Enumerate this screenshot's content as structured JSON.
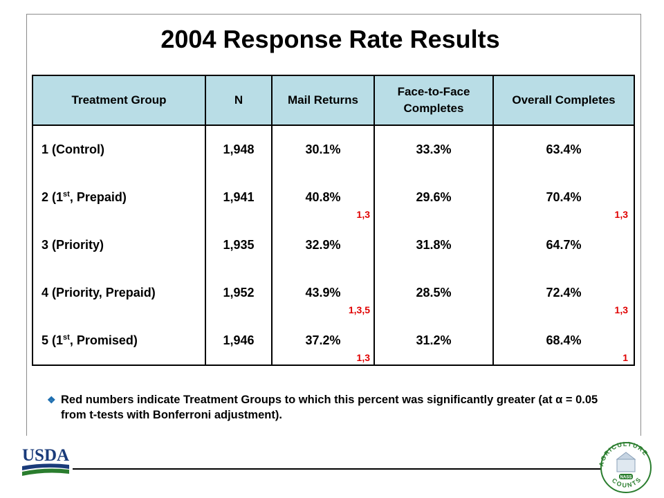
{
  "title": "2004 Response Rate Results",
  "table": {
    "headers": {
      "group": "Treatment Group",
      "n": "N",
      "mail": "Mail Returns",
      "f2f": "Face-to-Face Completes",
      "overall": "Overall Completes"
    },
    "rows": [
      {
        "group_pre": "1 (Control)",
        "group_sup": "",
        "group_post": "",
        "n": "1,948",
        "mail": "30.1%",
        "mail_sig": "",
        "f2f": "33.3%",
        "overall": "63.4%",
        "overall_sig": ""
      },
      {
        "group_pre": "2 (1",
        "group_sup": "st",
        "group_post": ", Prepaid)",
        "n": "1,941",
        "mail": "40.8%",
        "mail_sig": "1,3",
        "f2f": "29.6%",
        "overall": "70.4%",
        "overall_sig": "1,3"
      },
      {
        "group_pre": "3 (Priority)",
        "group_sup": "",
        "group_post": "",
        "n": "1,935",
        "mail": "32.9%",
        "mail_sig": "",
        "f2f": "31.8%",
        "overall": "64.7%",
        "overall_sig": ""
      },
      {
        "group_pre": "4 (Priority, Prepaid)",
        "group_sup": "",
        "group_post": "",
        "n": "1,952",
        "mail": "43.9%",
        "mail_sig": "1,3,5",
        "f2f": "28.5%",
        "overall": "72.4%",
        "overall_sig": "1,3"
      },
      {
        "group_pre": "5 (1",
        "group_sup": "st",
        "group_post": ", Promised)",
        "n": "1,946",
        "mail": "37.2%",
        "mail_sig": "1,3",
        "f2f": "31.2%",
        "overall": "68.4%",
        "overall_sig": "1"
      }
    ]
  },
  "note": {
    "bullet_icon": "diamond-bullet-icon",
    "text": "Red numbers indicate Treatment Groups to which this percent was significantly greater (at α = 0.05 from t-tests with Bonferroni adjustment)."
  },
  "logos": {
    "usda_text": "USDA",
    "ag_top": "AGRICULTURE",
    "ag_bottom": "COUNTS",
    "ag_center": "NASS"
  },
  "colors": {
    "header_bg": "#b9dde6",
    "significance": "#e00000",
    "usda_blue": "#1a3b7a",
    "usda_green": "#2a7d2e"
  }
}
